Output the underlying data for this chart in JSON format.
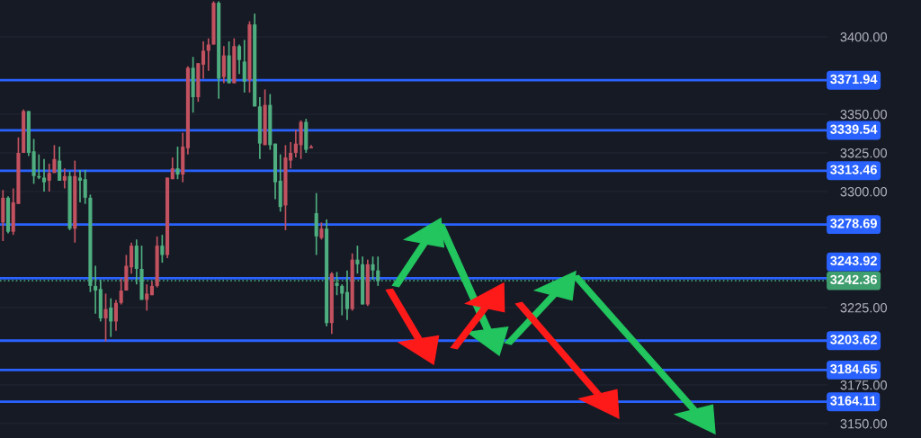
{
  "chart_data": {
    "type": "candlestick",
    "categories": [
      null,
      null,
      null,
      null,
      null,
      null,
      null,
      null,
      null,
      null,
      null,
      null,
      null,
      null,
      null,
      null,
      null,
      null,
      null,
      null,
      null,
      null,
      null,
      null,
      null,
      null,
      null,
      null,
      null,
      null,
      null,
      null,
      null,
      null,
      null,
      null,
      null,
      null,
      null,
      null,
      null,
      null,
      null,
      null,
      null,
      null,
      null,
      null,
      null,
      null,
      null,
      null,
      null,
      null,
      null,
      null,
      null,
      null,
      null,
      null,
      null,
      null,
      null,
      null,
      null,
      null,
      null,
      null,
      null,
      null,
      null,
      null,
      null,
      null,
      null,
      null,
      null,
      null,
      null,
      null,
      null,
      null,
      null,
      null,
      null,
      null,
      null,
      null,
      null,
      null,
      null,
      null,
      null,
      null,
      null,
      null,
      null,
      null,
      null,
      null,
      null,
      null,
      null,
      null,
      null,
      null,
      null,
      null,
      null,
      null,
      null,
      null,
      null,
      null,
      null,
      null,
      null,
      null,
      null,
      null,
      null,
      null,
      null,
      null,
      null,
      null,
      null,
      null,
      null,
      null,
      null,
      null,
      null,
      null,
      null,
      null,
      null,
      null,
      null,
      null,
      null,
      null,
      null,
      null,
      null,
      null,
      null,
      null,
      null,
      null,
      null,
      null,
      null,
      null,
      null,
      null,
      null,
      null,
      null,
      null,
      null
    ],
    "ohlc": [
      [
        3280,
        3301,
        3268,
        3296
      ],
      [
        3296,
        3297,
        3273,
        3274
      ],
      [
        3274,
        3302,
        3272,
        3293
      ],
      [
        3292,
        3335,
        3292,
        3325
      ],
      [
        3325,
        3353,
        3325,
        3352
      ],
      [
        3352,
        3352,
        3323,
        3325
      ],
      [
        3326,
        3334,
        3305,
        3310
      ],
      [
        3310,
        3324,
        3308,
        3309
      ],
      [
        3309,
        3321,
        3300,
        3306
      ],
      [
        3307,
        3318,
        3300,
        3312
      ],
      [
        3312,
        3330,
        3312,
        3321
      ],
      [
        3320,
        3329,
        3307,
        3307
      ],
      [
        3307,
        3315,
        3302,
        3310
      ],
      [
        3310,
        3313,
        3275,
        3276
      ],
      [
        3276,
        3320,
        3267,
        3310
      ],
      [
        3309,
        3314,
        3293,
        3307
      ],
      [
        3308,
        3314,
        3292,
        3296
      ],
      [
        3296,
        3298,
        3235,
        3239
      ],
      [
        3239,
        3252,
        3221,
        3236
      ],
      [
        3237,
        3243,
        3216,
        3218
      ],
      [
        3218,
        3234,
        3203,
        3224
      ],
      [
        3225,
        3231,
        3206,
        3216
      ],
      [
        3216,
        3230,
        3210,
        3228
      ],
      [
        3228,
        3244,
        3227,
        3236
      ],
      [
        3236,
        3259,
        3236,
        3252
      ],
      [
        3251,
        3267,
        3247,
        3265
      ],
      [
        3265,
        3269,
        3240,
        3250
      ],
      [
        3250,
        3265,
        3230,
        3230
      ],
      [
        3230,
        3240,
        3223,
        3234
      ],
      [
        3233,
        3242,
        3233,
        3239
      ],
      [
        3239,
        3271,
        3238,
        3265
      ],
      [
        3265,
        3272,
        3254,
        3259
      ],
      [
        3259,
        3309,
        3257,
        3309
      ],
      [
        3308,
        3322,
        3308,
        3315
      ],
      [
        3315,
        3329,
        3308,
        3311
      ],
      [
        3311,
        3338,
        3306,
        3329
      ],
      [
        3328,
        3381,
        3324,
        3380
      ],
      [
        3380,
        3387,
        3351,
        3361
      ],
      [
        3361,
        3383,
        3358,
        3383
      ],
      [
        3382,
        3397,
        3373,
        3391
      ],
      [
        3391,
        3399,
        3378,
        3395
      ],
      [
        3395,
        3423,
        3395,
        3422
      ],
      [
        3422,
        3423,
        3360,
        3373
      ],
      [
        3374,
        3394,
        3370,
        3388
      ],
      [
        3388,
        3397,
        3370,
        3370
      ],
      [
        3370,
        3399,
        3370,
        3394
      ],
      [
        3394,
        3395,
        3376,
        3385
      ],
      [
        3384,
        3398,
        3364,
        3371
      ],
      [
        3372,
        3410,
        3364,
        3408
      ],
      [
        3408,
        3415,
        3355,
        3355
      ],
      [
        3355,
        3361,
        3321,
        3331
      ],
      [
        3330,
        3366,
        3330,
        3356
      ],
      [
        3356,
        3363,
        3327,
        3330
      ],
      [
        3331,
        3331,
        3295,
        3306
      ],
      [
        3307,
        3324,
        3287,
        3290
      ],
      [
        3291,
        3330,
        3275,
        3322
      ],
      [
        3320,
        3332,
        3315,
        3325
      ],
      [
        3325,
        3340,
        3322,
        3331
      ],
      [
        3330,
        3346,
        3321,
        3345
      ],
      [
        3345,
        3347,
        3325,
        3327
      ],
      [
        3328,
        3330,
        3328,
        3329
      ],
      [
        3286,
        3299,
        3259,
        3271
      ],
      [
        3270,
        3280,
        3269,
        3276
      ],
      [
        3276,
        3282,
        3213,
        3215
      ],
      [
        3215,
        3248,
        3208,
        3247
      ],
      [
        3241,
        3248,
        3233,
        3239
      ],
      [
        3239,
        3240,
        3220,
        3234
      ],
      [
        3235,
        3249,
        3217,
        3224
      ],
      [
        3224,
        3260,
        3223,
        3256
      ],
      [
        3256,
        3265,
        3247,
        3253
      ],
      [
        3253,
        3258,
        3227,
        3227
      ],
      [
        3227,
        3256,
        3226,
        3253
      ],
      [
        3253,
        3258,
        3243,
        3249
      ],
      [
        3249,
        3258,
        3239,
        3242
      ],
      null,
      null,
      null,
      null,
      null,
      null,
      null,
      null,
      null,
      null,
      null,
      null,
      null,
      null,
      null,
      null,
      null,
      null,
      null,
      null,
      null,
      null,
      null,
      null,
      null,
      null,
      null,
      null,
      null,
      null,
      null,
      null,
      null,
      null,
      null,
      null,
      null,
      null,
      null,
      null,
      null,
      null,
      null,
      null,
      null,
      null,
      null,
      null,
      null,
      null,
      null,
      null,
      null,
      null,
      null,
      null,
      null,
      null,
      null,
      null,
      null,
      null,
      null,
      null,
      null,
      null,
      null,
      null,
      null,
      null,
      null,
      null,
      null,
      null,
      null,
      null,
      null,
      null,
      null,
      null,
      null,
      null,
      null,
      null,
      null,
      null,
      null
    ],
    "colors": [
      "#c2525f",
      "#4fae7f",
      "#c2525f",
      "#c2525f",
      "#c2525f",
      "#4fae7f",
      "#4fae7f",
      "#4fae7f",
      "#4fae7f",
      "#c2525f",
      "#c2525f",
      "#4fae7f",
      "#c2525f",
      "#4fae7f",
      "#c2525f",
      "#4fae7f",
      "#4fae7f",
      "#4fae7f",
      "#4fae7f",
      "#4fae7f",
      "#c2525f",
      "#4fae7f",
      "#c2525f",
      "#c2525f",
      "#c2525f",
      "#c2525f",
      "#4fae7f",
      "#4fae7f",
      "#c2525f",
      "#c2525f",
      "#c2525f",
      "#4fae7f",
      "#c2525f",
      "#c2525f",
      "#4fae7f",
      "#c2525f",
      "#c2525f",
      "#4fae7f",
      "#c2525f",
      "#c2525f",
      "#c2525f",
      "#c2525f",
      "#4fae7f",
      "#c2525f",
      "#4fae7f",
      "#c2525f",
      "#4fae7f",
      "#4fae7f",
      "#c2525f",
      "#4fae7f",
      "#4fae7f",
      "#c2525f",
      "#4fae7f",
      "#4fae7f",
      "#4fae7f",
      "#c2525f",
      "#c2525f",
      "#c2525f",
      "#c2525f",
      "#4fae7f",
      "#c2525f",
      "#4fae7f",
      "#c2525f",
      "#4fae7f",
      "#c2525f",
      "#4fae7f",
      "#4fae7f",
      "#4fae7f",
      "#c2525f",
      "#4fae7f",
      "#4fae7f",
      "#c2525f",
      "#4fae7f",
      "#4fae7f",
      null,
      null,
      null,
      null,
      null,
      null,
      null,
      null,
      null,
      null,
      null,
      null,
      null,
      null,
      null,
      null,
      null,
      null,
      null,
      null,
      null,
      null,
      null,
      null,
      null,
      null,
      null,
      null,
      null,
      null,
      null,
      null,
      null,
      null,
      null,
      null,
      null,
      null,
      null,
      null,
      null,
      null,
      null,
      null,
      null,
      null,
      null,
      null,
      null,
      null,
      null,
      null,
      null,
      null,
      null,
      null,
      null,
      null,
      null,
      null,
      null,
      null,
      null,
      null,
      null,
      null,
      null,
      null,
      null,
      null,
      null,
      null,
      null,
      null,
      null,
      null,
      null,
      null,
      null,
      null,
      null,
      null,
      null,
      null,
      null,
      null,
      null
    ],
    "ylim": [
      3140.7,
      3423.8
    ],
    "yticks": [
      {
        "value": 3150,
        "label": "3150.00"
      },
      {
        "value": 3175,
        "label": "3175.00"
      },
      {
        "value": 3225,
        "label": "3225.00"
      },
      {
        "value": 3300,
        "label": "3300.00"
      },
      {
        "value": 3325,
        "label": "3325.00"
      },
      {
        "value": 3350,
        "label": "3350.00"
      },
      {
        "value": 3400,
        "label": "3400.00"
      }
    ],
    "grid": "y",
    "ref_lines": [
      {
        "axis": "y",
        "value": 3371.94,
        "label": "3371.94",
        "color": "#2962ff",
        "line_style": "solid"
      },
      {
        "axis": "y",
        "value": 3339.54,
        "label": "3339.54",
        "color": "#2962ff",
        "line_style": "solid"
      },
      {
        "axis": "y",
        "value": 3313.46,
        "label": "3313.46",
        "color": "#2962ff",
        "line_style": "solid"
      },
      {
        "axis": "y",
        "value": 3278.69,
        "label": "3278.69",
        "color": "#2962ff",
        "line_style": "solid"
      },
      {
        "axis": "y",
        "value": 3243.92,
        "label": "3243.92",
        "color": "#2962ff",
        "line_style": "solid"
      },
      {
        "axis": "y",
        "value": 3242.36,
        "label": "3242.36",
        "color": "#3e9e6e",
        "line_style": "dotted"
      },
      {
        "axis": "y",
        "value": 3203.62,
        "label": "3203.62",
        "color": "#2962ff",
        "line_style": "solid"
      },
      {
        "axis": "y",
        "value": 3184.65,
        "label": "3184.65",
        "color": "#2962ff",
        "line_style": "solid"
      },
      {
        "axis": "y",
        "value": 3164.11,
        "label": "3164.11",
        "color": "#2962ff",
        "line_style": "solid"
      }
    ]
  }
}
